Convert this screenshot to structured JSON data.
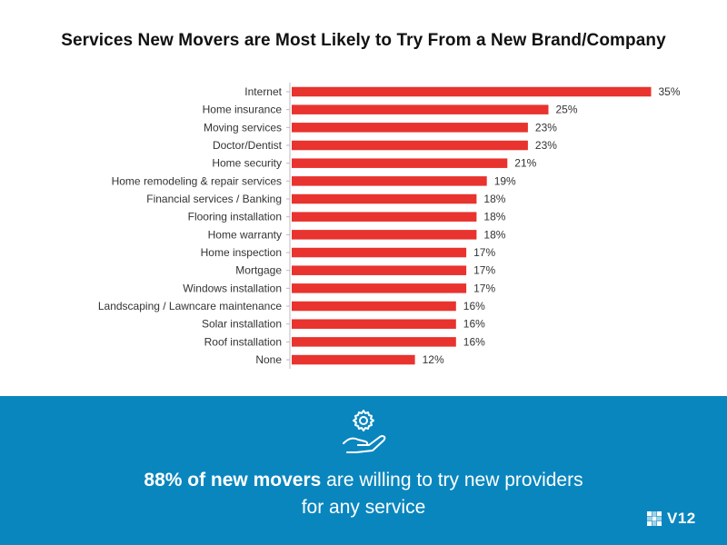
{
  "chart_data": {
    "type": "bar",
    "orientation": "horizontal",
    "title": "Services New Movers are Most Likely to Try From a New Brand/Company",
    "categories": [
      "Internet",
      "Home insurance",
      "Moving services",
      "Doctor/Dentist",
      "Home security",
      "Home remodeling & repair services",
      "Financial services / Banking",
      "Flooring installation",
      "Home warranty",
      "Home inspection",
      "Mortgage",
      "Windows installation",
      "Landscaping / Lawncare maintenance",
      "Solar installation",
      "Roof installation",
      "None"
    ],
    "values": [
      35,
      25,
      23,
      23,
      21,
      19,
      18,
      18,
      18,
      17,
      17,
      17,
      16,
      16,
      16,
      12
    ],
    "value_labels": [
      "35%",
      "25%",
      "23%",
      "23%",
      "21%",
      "19%",
      "18%",
      "18%",
      "18%",
      "17%",
      "17%",
      "17%",
      "16%",
      "16%",
      "16%",
      "12%"
    ],
    "unit": "%",
    "bar_color": "#e8332e",
    "xlim": [
      0,
      36
    ],
    "grid": false,
    "legend": "none"
  },
  "footer": {
    "highlight": "88% of new movers",
    "text_rest": " are willing to try new providers",
    "line2": "for any service",
    "icon": "gear-in-hand-icon",
    "background": "#0a86be"
  },
  "logo": {
    "text": "V12",
    "icon": "checker-grid-icon"
  }
}
